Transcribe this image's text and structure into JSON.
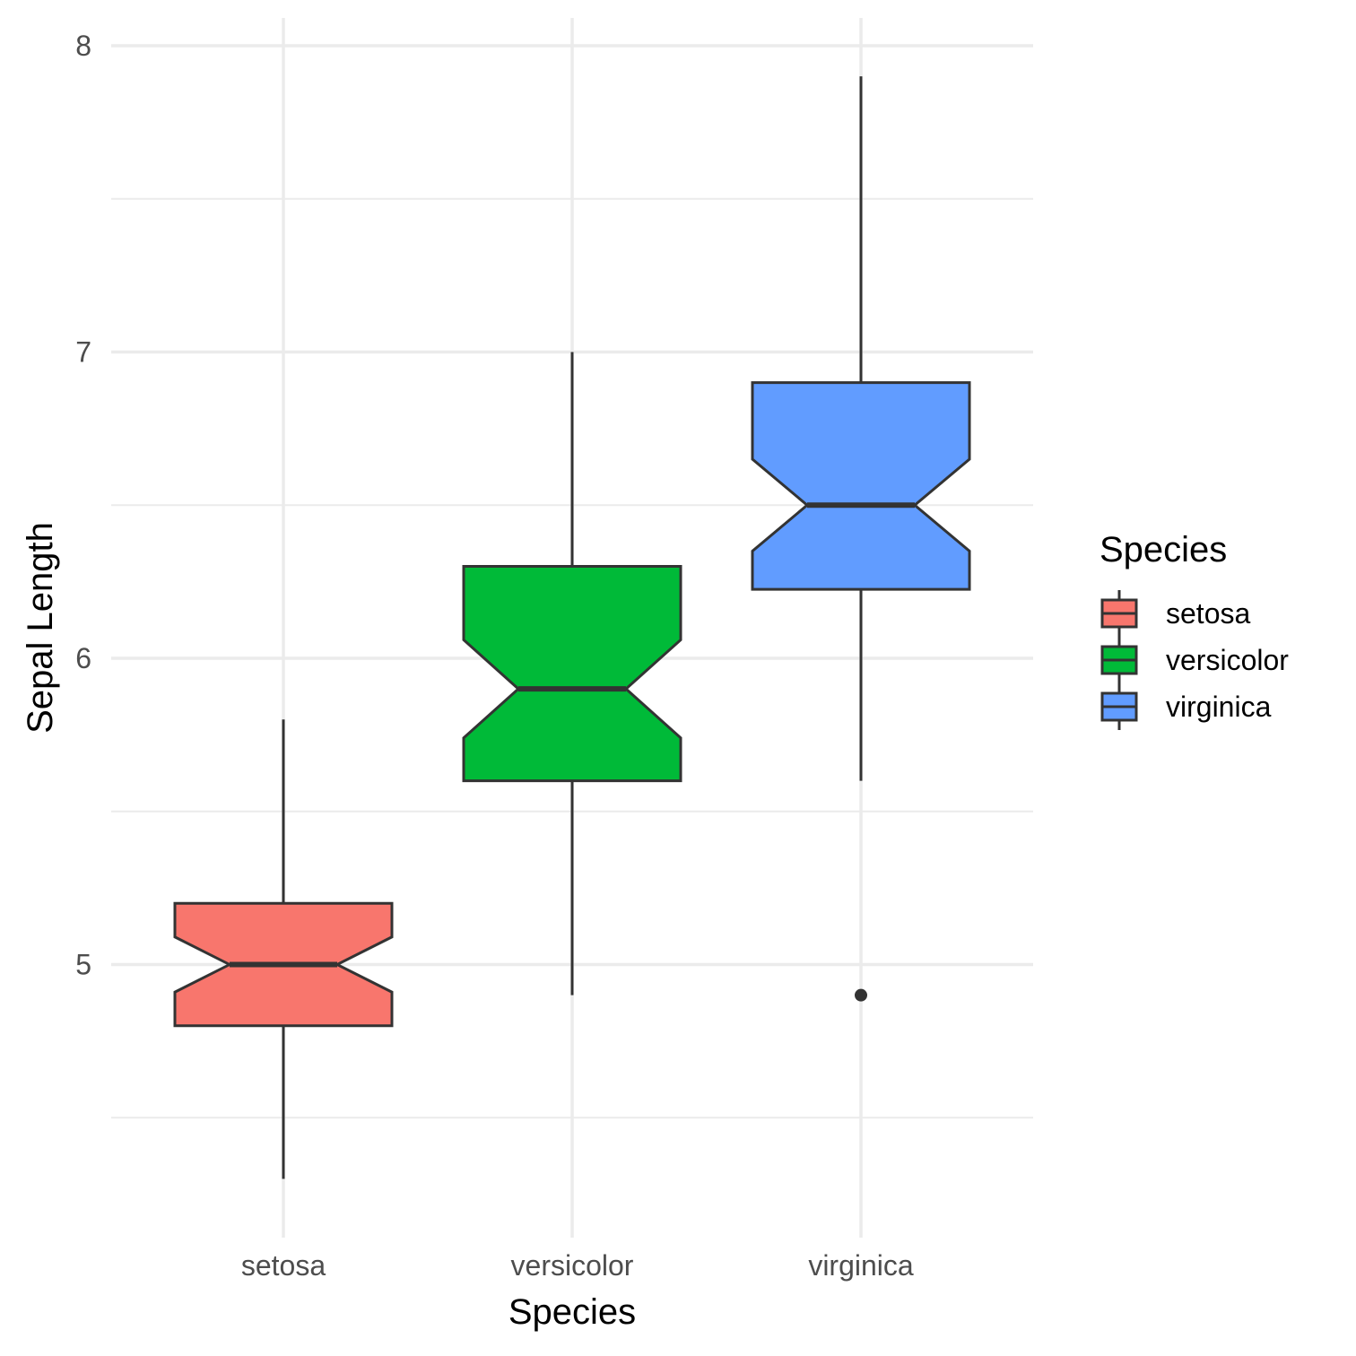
{
  "chart_data": {
    "type": "box",
    "notched": true,
    "title": "",
    "xlabel": "Species",
    "ylabel": "Sepal Length",
    "categories": [
      "setosa",
      "versicolor",
      "virginica"
    ],
    "ylim": [
      4.2,
      8.1
    ],
    "yticks": [
      "5",
      "6",
      "7",
      "8"
    ],
    "grid": true,
    "legend": {
      "title": "Species",
      "position": "right",
      "entries": [
        "setosa",
        "versicolor",
        "virginica"
      ]
    },
    "series": [
      {
        "category": "setosa",
        "color": "#F8766D",
        "whisker_low": 4.3,
        "q1": 4.8,
        "median": 5.0,
        "q3": 5.2,
        "whisker_high": 5.8,
        "notch_low": 4.91,
        "notch_high": 5.09,
        "outliers": []
      },
      {
        "category": "versicolor",
        "color": "#00BA38",
        "whisker_low": 4.9,
        "q1": 5.6,
        "median": 5.9,
        "q3": 6.3,
        "whisker_high": 7.0,
        "notch_low": 5.74,
        "notch_high": 6.06,
        "outliers": []
      },
      {
        "category": "virginica",
        "color": "#619CFF",
        "whisker_low": 5.6,
        "q1": 6.225,
        "median": 6.5,
        "q3": 6.9,
        "whisker_high": 7.9,
        "notch_low": 6.35,
        "notch_high": 6.65,
        "outliers": [
          4.9
        ]
      }
    ]
  }
}
